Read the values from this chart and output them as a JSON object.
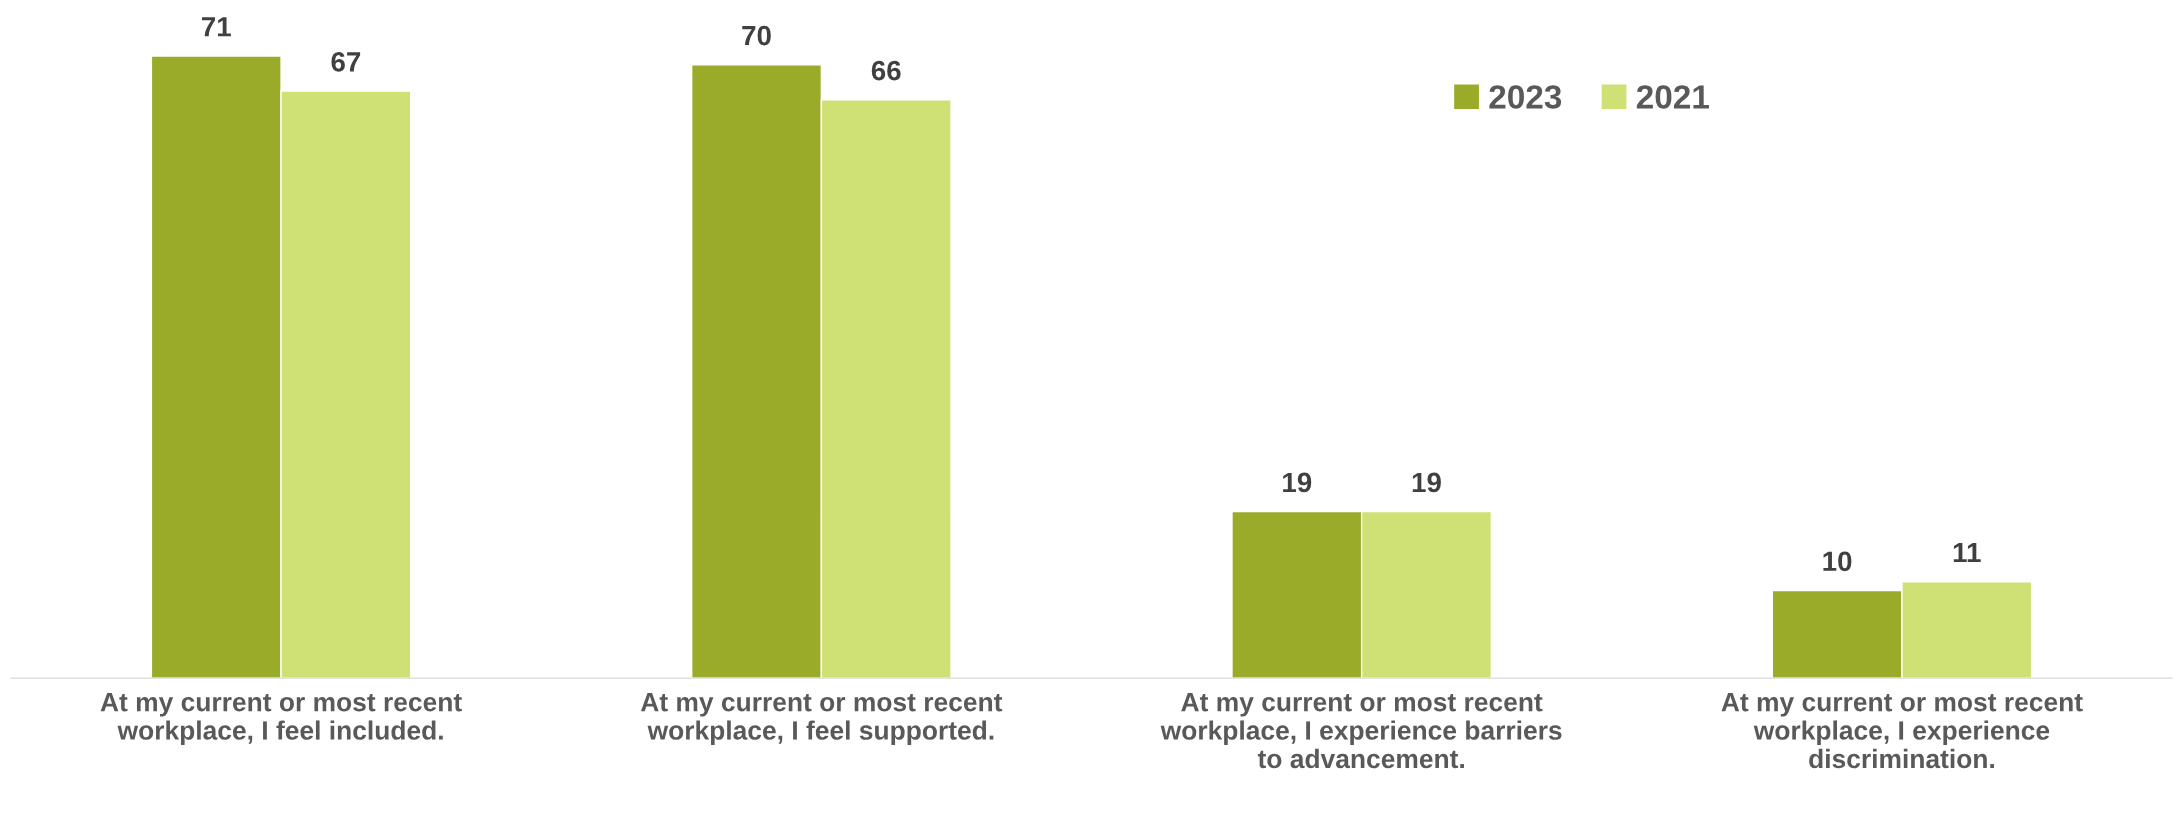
{
  "chart_data": {
    "type": "bar",
    "categories": [
      "At my current or most recent workplace, I feel included.",
      "At my current or most recent workplace, I feel supported.",
      "At my current or most recent workplace, I experience barriers to advancement.",
      "At my current or most recent workplace, I experience discrimination."
    ],
    "series": [
      {
        "name": "2023",
        "color": "#9aab29",
        "values": [
          71,
          70,
          19,
          10
        ]
      },
      {
        "name": "2021",
        "color": "#cfe075",
        "values": [
          67,
          66,
          19,
          11
        ]
      }
    ],
    "data_labels": true,
    "legend": "top right",
    "grid": false
  }
}
